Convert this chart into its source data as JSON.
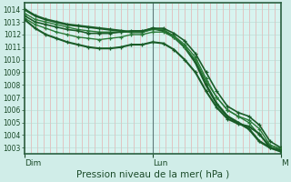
{
  "title": "Pression niveau de la mer( hPa )",
  "bg_color": "#d0ede8",
  "plot_bg_color": "#d8f4f0",
  "grid_color_v": "#e8a0a0",
  "grid_color_h": "#b8d8d0",
  "line_colors": [
    "#1a5c28",
    "#2a7a38",
    "#1a5c28",
    "#2a7a38",
    "#1a5c28"
  ],
  "line_widths": [
    1.8,
    1.0,
    1.2,
    1.0,
    1.5
  ],
  "border_color": "#2a6040",
  "text_color": "#1a4a28",
  "ylim": [
    1002.5,
    1014.5
  ],
  "yticks": [
    1003,
    1004,
    1005,
    1006,
    1007,
    1008,
    1009,
    1010,
    1011,
    1012,
    1013,
    1014
  ],
  "xtick_labels": [
    "Dim",
    "Lun",
    "M"
  ],
  "xtick_positions": [
    0.0,
    0.5,
    1.0
  ],
  "num_points": 25,
  "series": [
    [
      1014.0,
      1013.5,
      1013.2,
      1013.0,
      1012.8,
      1012.7,
      1012.6,
      1012.5,
      1012.4,
      1012.3,
      1012.2,
      1012.2,
      1012.5,
      1012.3,
      1011.8,
      1011.0,
      1009.8,
      1008.0,
      1006.5,
      1005.5,
      1005.0,
      1004.5,
      1003.5,
      1003.0,
      1002.7
    ],
    [
      1013.7,
      1013.2,
      1013.0,
      1012.8,
      1012.6,
      1012.4,
      1012.3,
      1012.2,
      1012.2,
      1012.2,
      1012.2,
      1012.2,
      1012.4,
      1012.4,
      1011.9,
      1011.2,
      1010.2,
      1008.5,
      1007.0,
      1006.0,
      1005.5,
      1005.0,
      1004.0,
      1003.2,
      1002.9
    ],
    [
      1013.5,
      1013.0,
      1012.8,
      1012.6,
      1012.4,
      1012.3,
      1012.1,
      1012.1,
      1012.1,
      1012.2,
      1012.3,
      1012.3,
      1012.5,
      1012.5,
      1012.1,
      1011.5,
      1010.5,
      1009.0,
      1007.5,
      1006.3,
      1005.8,
      1005.5,
      1004.8,
      1003.5,
      1003.0
    ],
    [
      1013.3,
      1012.8,
      1012.5,
      1012.2,
      1012.0,
      1011.8,
      1011.7,
      1011.6,
      1011.7,
      1011.8,
      1012.0,
      1012.0,
      1012.2,
      1012.2,
      1011.8,
      1011.0,
      1010.0,
      1008.3,
      1007.0,
      1006.0,
      1005.5,
      1005.2,
      1004.5,
      1003.2,
      1002.9
    ],
    [
      1013.2,
      1012.5,
      1012.0,
      1011.7,
      1011.4,
      1011.2,
      1011.0,
      1010.9,
      1010.9,
      1011.0,
      1011.2,
      1011.2,
      1011.4,
      1011.3,
      1010.8,
      1010.0,
      1009.0,
      1007.5,
      1006.2,
      1005.3,
      1004.9,
      1004.7,
      1004.1,
      1003.0,
      1002.8
    ]
  ],
  "vline_x": 0.5,
  "vline_color": "#607878",
  "xlabel_fontsize": 7.5,
  "ytick_fontsize": 5.5,
  "xtick_fontsize": 6.5
}
